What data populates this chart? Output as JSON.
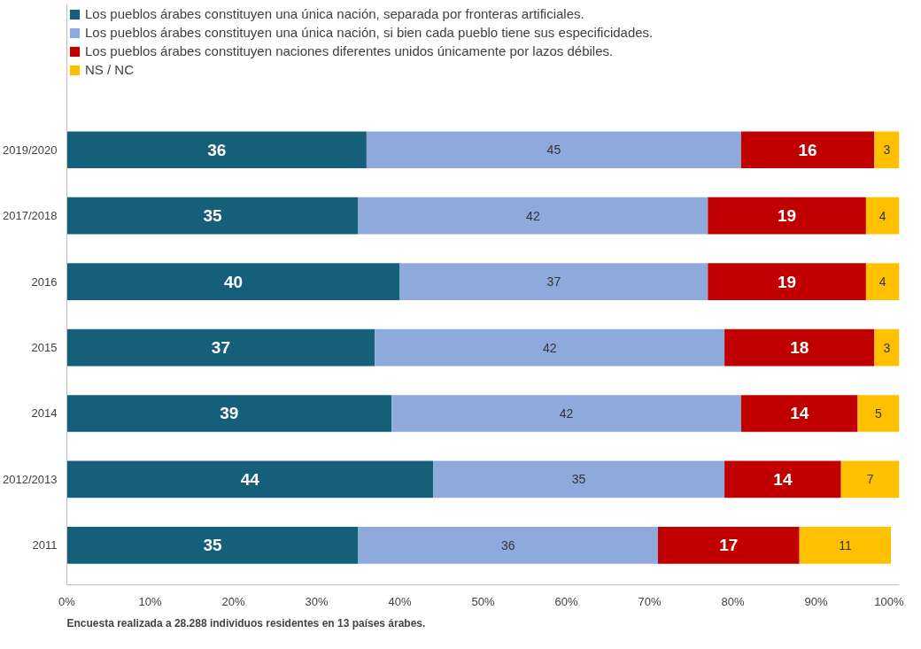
{
  "chart_data": {
    "type": "bar",
    "orientation": "horizontal",
    "stacked": true,
    "categories": [
      "2019/2020",
      "2017/2018",
      "2016",
      "2015",
      "2014",
      "2012/2013",
      "2011"
    ],
    "series": [
      {
        "name": "Los pueblos árabes constituyen una única nación, separada por fronteras artificiales.",
        "color": "#156078",
        "values": [
          36,
          35,
          40,
          37,
          39,
          44,
          35
        ]
      },
      {
        "name": "Los pueblos árabes constituyen una única nación, si bien cada pueblo tiene sus especificidades.",
        "color": "#8eaadc",
        "values": [
          45,
          42,
          37,
          42,
          42,
          35,
          36
        ]
      },
      {
        "name": "Los pueblos árabes constituyen naciones diferentes unidos únicamente por lazos débiles.",
        "color": "#c00000",
        "values": [
          16,
          19,
          19,
          18,
          14,
          14,
          17
        ]
      },
      {
        "name": "NS / NC",
        "color": "#ffc000",
        "values": [
          3,
          4,
          4,
          3,
          5,
          7,
          11
        ]
      }
    ],
    "xlim": [
      0,
      100
    ],
    "xticks": [
      {
        "value": 0,
        "label": "0%"
      },
      {
        "value": 10,
        "label": "10%"
      },
      {
        "value": 20,
        "label": "20%"
      },
      {
        "value": 30,
        "label": "30%"
      },
      {
        "value": 40,
        "label": "40%"
      },
      {
        "value": 50,
        "label": "50%"
      },
      {
        "value": 60,
        "label": "60%"
      },
      {
        "value": 70,
        "label": "70%"
      },
      {
        "value": 80,
        "label": "80%"
      },
      {
        "value": 90,
        "label": "90%"
      },
      {
        "value": 100,
        "label": "100%"
      }
    ],
    "data_labels": true,
    "grid": false,
    "legend": "top left",
    "annotations": [
      "Encuesta realizada a 28.288 individuos residentes en 13 países árabes."
    ]
  }
}
